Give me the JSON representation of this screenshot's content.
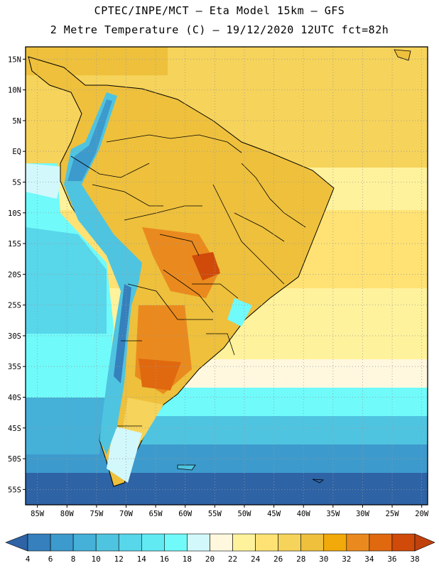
{
  "header": {
    "line1": "CPTEC/INPE/MCT –  Eta Model 15km – GFS",
    "line2": "2 Metre Temperature (C) – 19/12/2020 12UTC fct=82h"
  },
  "map": {
    "lat_labels": [
      "15N",
      "10N",
      "5N",
      "EQ",
      "5S",
      "10S",
      "15S",
      "20S",
      "25S",
      "30S",
      "35S",
      "40S",
      "45S",
      "50S",
      "55S"
    ],
    "lon_labels": [
      "85W",
      "80W",
      "75W",
      "70W",
      "65W",
      "60W",
      "55W",
      "50W",
      "45W",
      "40W",
      "35W",
      "30W",
      "25W",
      "20W"
    ]
  },
  "legend": {
    "labels": [
      "4",
      "6",
      "8",
      "10",
      "12",
      "14",
      "16",
      "18",
      "20",
      "22",
      "24",
      "26",
      "28",
      "30",
      "32",
      "34",
      "36",
      "38"
    ],
    "colors": [
      "#2e63a5",
      "#3580bd",
      "#3d9acc",
      "#45b0d8",
      "#4fc4e0",
      "#58d6ea",
      "#62eaf3",
      "#70fafa",
      "#d2f8fc",
      "#fff8df",
      "#fff29c",
      "#ffe273",
      "#f6d35a",
      "#eec03c",
      "#f1aa0a",
      "#ea8a1e",
      "#e06910",
      "#d04a0a",
      "#c63a08",
      "#c0410d"
    ]
  }
}
